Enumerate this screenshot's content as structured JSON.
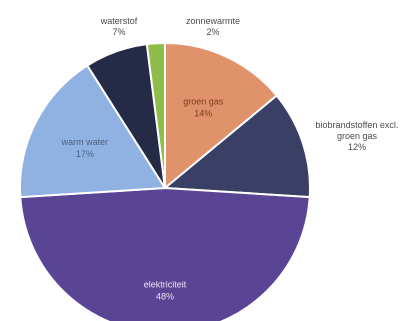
{
  "chart_data": {
    "type": "pie",
    "title": "",
    "slices": [
      {
        "label": "groen gas",
        "percent_label": "14%",
        "value": 14,
        "color": "#e0936a",
        "label_color": "#7a3d1c"
      },
      {
        "label": "biobrandstoffen excl.\ngroen gas",
        "percent_label": "12%",
        "value": 12,
        "color": "#3a3f66",
        "label_color": "#4a4a4a"
      },
      {
        "label": "elektriciteit",
        "percent_label": "48%",
        "value": 48,
        "color": "#5a4594",
        "label_color": "#e8e4f4"
      },
      {
        "label": "warm water",
        "percent_label": "17%",
        "value": 17,
        "color": "#90b2e2",
        "label_color": "#4a5f82"
      },
      {
        "label": "waterstof",
        "percent_label": "7%",
        "value": 7,
        "color": "#252b46",
        "label_color": "#4a4a4a"
      },
      {
        "label": "zonnewarmte",
        "percent_label": "2%",
        "value": 2,
        "color": "#92bc4a",
        "label_color": "#4a4a4a"
      }
    ]
  }
}
